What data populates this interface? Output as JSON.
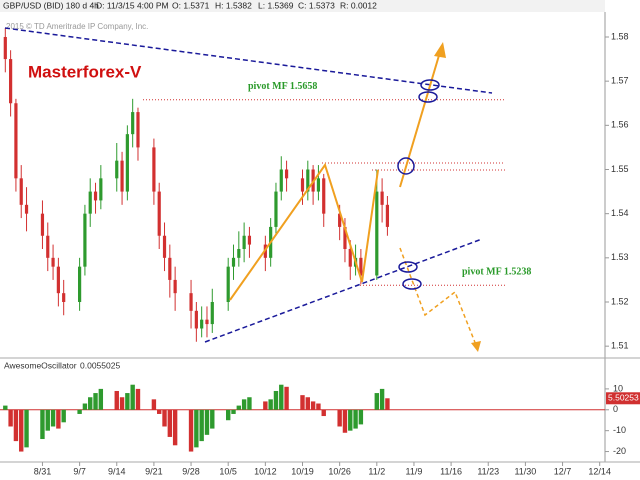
{
  "header": {
    "symbol": "GBP/USD (BID) 180 d 4h",
    "date": "D: 11/3/15 4:00 PM",
    "open": "O: 1.5371",
    "high": "H: 1.5382",
    "low": "L: 1.5369",
    "close": "C: 1.5373",
    "range": "R: 0.0012",
    "copyright": "2015 © TD Ameritrade IP Company, Inc."
  },
  "chart_data": [
    {
      "type": "candlestick",
      "title": "Masterforex-V",
      "x": [
        236,
        237,
        238,
        239,
        240,
        243,
        244,
        245,
        246,
        247,
        250,
        251,
        252,
        253,
        254,
        257,
        258,
        259,
        260,
        261,
        264,
        265,
        266,
        267,
        268,
        271,
        272,
        273,
        274,
        275,
        278,
        279,
        280,
        281,
        282,
        285,
        286,
        287,
        288,
        289,
        292,
        293,
        294,
        295,
        296,
        299,
        300,
        301,
        302,
        303,
        306,
        307,
        308
      ],
      "open": [
        1.58,
        1.575,
        1.565,
        1.548,
        1.542,
        1.54,
        1.535,
        1.53,
        1.528,
        1.522,
        1.52,
        1.528,
        1.54,
        1.545,
        1.543,
        1.548,
        1.552,
        1.545,
        1.558,
        1.563,
        1.555,
        1.545,
        1.535,
        1.53,
        1.525,
        1.522,
        1.518,
        1.514,
        1.516,
        1.515,
        1.52,
        1.528,
        1.53,
        1.532,
        1.535,
        1.533,
        1.53,
        1.537,
        1.545,
        1.55,
        1.548,
        1.545,
        1.55,
        1.545,
        1.548,
        1.54,
        1.537,
        1.532,
        1.528,
        1.53,
        1.526,
        1.545,
        1.542
      ],
      "high": [
        1.582,
        1.577,
        1.566,
        1.551,
        1.546,
        1.543,
        1.538,
        1.533,
        1.53,
        1.525,
        1.53,
        1.542,
        1.548,
        1.547,
        1.551,
        1.556,
        1.554,
        1.56,
        1.566,
        1.564,
        1.557,
        1.547,
        1.538,
        1.533,
        1.528,
        1.525,
        1.52,
        1.519,
        1.519,
        1.523,
        1.53,
        1.533,
        1.536,
        1.538,
        1.537,
        1.535,
        1.539,
        1.547,
        1.553,
        1.552,
        1.55,
        1.552,
        1.551,
        1.551,
        1.549,
        1.542,
        1.539,
        1.534,
        1.533,
        1.532,
        1.55,
        1.548,
        1.544
      ],
      "low": [
        1.572,
        1.562,
        1.545,
        1.539,
        1.536,
        1.532,
        1.527,
        1.525,
        1.519,
        1.517,
        1.518,
        1.526,
        1.537,
        1.54,
        1.541,
        1.545,
        1.542,
        1.543,
        1.555,
        1.552,
        1.542,
        1.532,
        1.527,
        1.521,
        1.518,
        1.514,
        1.511,
        1.512,
        1.512,
        1.513,
        1.518,
        1.525,
        1.528,
        1.529,
        1.53,
        1.527,
        1.528,
        1.535,
        1.543,
        1.545,
        1.542,
        1.543,
        1.542,
        1.543,
        1.537,
        1.534,
        1.529,
        1.525,
        1.526,
        1.524,
        1.525,
        1.538,
        1.535
      ],
      "close": [
        1.575,
        1.565,
        1.548,
        1.542,
        1.54,
        1.535,
        1.53,
        1.528,
        1.522,
        1.52,
        1.528,
        1.54,
        1.545,
        1.543,
        1.548,
        1.552,
        1.545,
        1.558,
        1.563,
        1.555,
        1.545,
        1.535,
        1.53,
        1.525,
        1.522,
        1.518,
        1.514,
        1.516,
        1.515,
        1.52,
        1.528,
        1.53,
        1.532,
        1.535,
        1.533,
        1.53,
        1.537,
        1.545,
        1.55,
        1.548,
        1.545,
        1.55,
        1.545,
        1.548,
        1.54,
        1.537,
        1.532,
        1.528,
        1.53,
        1.526,
        1.545,
        1.542,
        1.537
      ],
      "up_color": "#2e9a2e",
      "down_color": "#d23030",
      "xlim": [
        235,
        349
      ],
      "xticks": [
        {
          "value": 243,
          "label": "8/31"
        },
        {
          "value": 250,
          "label": "9/7"
        },
        {
          "value": 257,
          "label": "9/14"
        },
        {
          "value": 264,
          "label": "9/21"
        },
        {
          "value": 271,
          "label": "9/28"
        },
        {
          "value": 278,
          "label": "10/5"
        },
        {
          "value": 285,
          "label": "10/12"
        },
        {
          "value": 292,
          "label": "10/19"
        },
        {
          "value": 299,
          "label": "10/26"
        },
        {
          "value": 306,
          "label": "11/2"
        },
        {
          "value": 313,
          "label": "11/9"
        },
        {
          "value": 320,
          "label": "11/16"
        },
        {
          "value": 327,
          "label": "11/23"
        },
        {
          "value": 334,
          "label": "11/30"
        },
        {
          "value": 341,
          "label": "12/7"
        },
        {
          "value": 348,
          "label": "12/14"
        }
      ],
      "ylim": [
        1.508,
        1.5843
      ],
      "yticks": [
        1.51,
        1.52,
        1.53,
        1.54,
        1.55,
        1.56,
        1.57,
        1.58
      ],
      "annotations": [
        {
          "text": "pivot MF 1.5658",
          "value": 1.5658
        },
        {
          "text": "pivot MF 1.5238",
          "value": 1.5238
        }
      ]
    },
    {
      "type": "bar",
      "title": "AwesomeOscillator",
      "subtitle": "0.0055025",
      "x": [
        236,
        237,
        238,
        239,
        240,
        243,
        244,
        245,
        246,
        247,
        250,
        251,
        252,
        253,
        254,
        257,
        258,
        259,
        260,
        261,
        264,
        265,
        266,
        267,
        268,
        271,
        272,
        273,
        274,
        275,
        278,
        279,
        280,
        281,
        282,
        285,
        286,
        287,
        288,
        289,
        292,
        293,
        294,
        295,
        296,
        299,
        300,
        301,
        302,
        303,
        306,
        307,
        308
      ],
      "values": [
        2,
        -8,
        -15,
        -20,
        -18,
        -14,
        -10,
        -8,
        -9,
        -6,
        -2,
        3,
        6,
        8,
        10,
        9,
        6,
        8,
        12,
        10,
        5,
        -2,
        -8,
        -13,
        -17,
        -20,
        -18,
        -15,
        -12,
        -9,
        -5,
        -2,
        2,
        5,
        6,
        4,
        5,
        9,
        12,
        11,
        7,
        6,
        4,
        3,
        -3,
        -8,
        -11,
        -10,
        -9,
        -7,
        8,
        10,
        5.50253
      ],
      "last_value": 5.50253,
      "up_color": "#2e9a2e",
      "down_color": "#d23030",
      "ylim": [
        -25,
        20
      ],
      "yticks": [
        10,
        0,
        -10,
        -20
      ]
    }
  ]
}
